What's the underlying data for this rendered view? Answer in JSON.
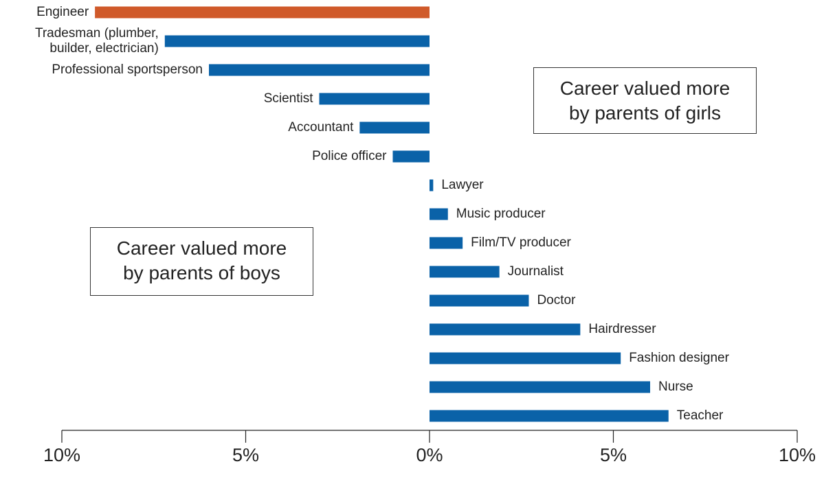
{
  "chart_data": {
    "type": "bar",
    "orientation": "horizontal",
    "categories": [
      "Engineer",
      "Tradesman (plumber,\nbuilder, electrician)",
      "Professional sportsperson",
      "Scientist",
      "Accountant",
      "Police officer",
      "Lawyer",
      "Music producer",
      "Film/TV producer",
      "Journalist",
      "Doctor",
      "Hairdresser",
      "Fashion designer",
      "Nurse",
      "Teacher"
    ],
    "values": [
      -9.1,
      -7.2,
      -6.0,
      -3.0,
      -1.9,
      -1.0,
      0.1,
      0.5,
      0.9,
      1.9,
      2.7,
      4.1,
      5.2,
      6.0,
      6.5
    ],
    "colors": [
      "#d05a2a",
      "#0a62a8",
      "#0a62a8",
      "#0a62a8",
      "#0a62a8",
      "#0a62a8",
      "#0a62a8",
      "#0a62a8",
      "#0a62a8",
      "#0a62a8",
      "#0a62a8",
      "#0a62a8",
      "#0a62a8",
      "#0a62a8",
      "#0a62a8"
    ],
    "xlim": [
      -10,
      10
    ],
    "xticks": [
      {
        "value": -10,
        "label": "10%"
      },
      {
        "value": -5,
        "label": "5%"
      },
      {
        "value": 0,
        "label": "0%"
      },
      {
        "value": 5,
        "label": "5%"
      },
      {
        "value": 10,
        "label": "10%"
      }
    ],
    "annotations": [
      "Career valued more\nby parents of girls",
      "Career valued more\nby parents of boys"
    ]
  }
}
